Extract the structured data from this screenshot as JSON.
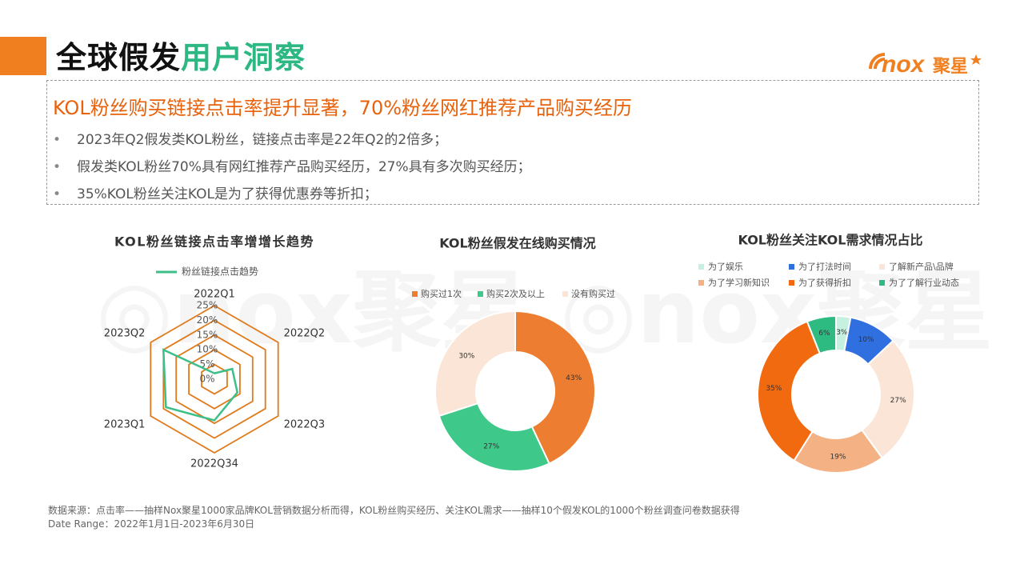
{
  "header": {
    "title_part1": "全球假发",
    "title_part2": "用户洞察",
    "brand_text": "nox聚星",
    "accent_color": "#f07f1f",
    "highlight_color": "#2cb783"
  },
  "summary": {
    "headline": "KOL粉丝购买链接点击率提升显著，70%粉丝网红推荐产品购买经历",
    "bullet_glyph": "•",
    "bullets": [
      "2023年Q2假发类KOL粉丝，链接点击率是22年Q2的2倍多；",
      "假发类KOL粉丝70%具有网红推荐产品购买经历，27%具有多次购买经历；",
      "35%KOL粉丝关注KOL是为了获得优惠券等折扣；"
    ]
  },
  "footer": {
    "source": "数据来源：点击率——抽样Nox聚星1000家品牌KOL营销数据分析而得，KOL粉丝购买经历、关注KOL需求——抽样10个假发KOL的1000个粉丝调查问卷数据获得",
    "date_range": "Date Range：2022年1月1日-2023年6月30日"
  },
  "chart_data": [
    {
      "type": "radar",
      "title": "KOL粉丝链接点击率增增长趋势",
      "categories": [
        "2022Q1",
        "2022Q2",
        "2022Q3",
        "2022Q34",
        "2023Q1",
        "2023Q2"
      ],
      "tick_labels": [
        "0%",
        "5%",
        "10%",
        "15%",
        "20%",
        "25%"
      ],
      "rlim": [
        0,
        25
      ],
      "grid_color": "#e07a1a",
      "series": [
        {
          "name": "粉丝链接点击趋势",
          "color": "#3dbf8a",
          "values": [
            2,
            7,
            9,
            14,
            19,
            20
          ]
        }
      ],
      "legend": "top"
    },
    {
      "type": "pie",
      "title": "KOL粉丝假发在线购买情况",
      "legend": "top",
      "slices": [
        {
          "label": "购买过1次",
          "value": 43,
          "display": "43%",
          "color": "#ed7d31"
        },
        {
          "label": "购买2次及以上",
          "value": 27,
          "display": "27%",
          "color": "#3ec98a"
        },
        {
          "label": "没有购买过",
          "value": 30,
          "display": "30%",
          "color": "#fbe5d6"
        }
      ]
    },
    {
      "type": "pie",
      "title": "KOL粉丝关注KOL需求情况占比",
      "legend": "top",
      "slices": [
        {
          "label": "为了娱乐",
          "value": 3,
          "display": "3%",
          "color": "#c6f0df"
        },
        {
          "label": "为了打法时间",
          "value": 10,
          "display": "10%",
          "color": "#2f6fe0"
        },
        {
          "label": "了解新产品\\品牌",
          "value": 27,
          "display": "27%",
          "color": "#fbe5d6"
        },
        {
          "label": "为了学习新知识",
          "value": 19,
          "display": "19%",
          "color": "#f4b183"
        },
        {
          "label": "为了获得折扣",
          "value": 35,
          "display": "35%",
          "color": "#f26a10"
        },
        {
          "label": "为了了解行业动态",
          "value": 6,
          "display": "6%",
          "color": "#2ebb82"
        }
      ]
    }
  ]
}
